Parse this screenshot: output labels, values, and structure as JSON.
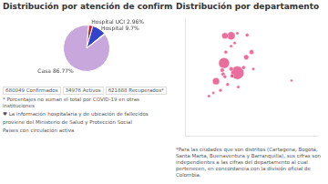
{
  "chart_data": [
    {
      "type": "pie",
      "title": "Distribución por atención de confirmados",
      "values": [
        2.96,
        9.7,
        0.57,
        86.77
      ],
      "colors": [
        "#cc2222",
        "#3344cc",
        "#cc6666",
        "#c8a8dc"
      ],
      "value_labels": [
        "Hospital UCI 2.96%",
        "Hospital 9.7%",
        null,
        "Casa 86.77%"
      ],
      "data_labels": true,
      "annotations": [
        "680049 Confirmados",
        "34976 Activos",
        "621888 Recuperados*",
        "* Porcentajes no suman el total por COVID-19 en otras instituciones",
        "♥  La información hospitalaria y de ubicación de fallecidos",
        "proviene del Ministerio de Salud y Protección Social",
        "Países con circulación activa"
      ]
    },
    {
      "type": "scatter",
      "title": "Distribución por departamento",
      "x": [
        -74.1,
        -75.6,
        -74.8,
        -76.5,
        -75.5,
        -73.1,
        -72.5,
        -75.8,
        -75.7,
        -75.5,
        -76.0,
        -74.8,
        -73.4,
        -74.7,
        -75.2,
        -74.0,
        -77.3,
        -72.3,
        -75.4,
        -74.8,
        -74.4,
        -73.0,
        -74.1,
        -76.8,
        -68.0
      ],
      "values": [
        4.7,
        6.2,
        10.4,
        3.4,
        10.4,
        7.1,
        7.9,
        5.1,
        4.5,
        4.1,
        2.0,
        5.3,
        5.5,
        4.2,
        2.9,
        2.5,
        1.1,
        5.3,
        7.9,
        8.8,
        9.3,
        10.5,
        10.8,
        1.6,
        3.5
      ],
      "sizes": [
        120,
        80,
        45,
        35,
        28,
        18,
        15,
        13,
        11,
        9,
        8,
        12,
        10,
        10,
        8,
        7,
        7,
        7,
        9,
        7,
        7,
        9,
        7,
        6,
        5
      ],
      "color": "#e03070",
      "xlim": [
        -80,
        -65
      ],
      "ylim": [
        -5,
        13
      ],
      "tick_labels": false,
      "grid": false,
      "annotations": [
        "*Para las ciudades que son distritos (Cartagena, Bogotá, Santa Marta, Buenaventura y Barranquilla), sus cifras son\nindependientes a las cifras del departamento al cual pertenecen, en concordancia con la división oficial de Colombia."
      ]
    }
  ]
}
